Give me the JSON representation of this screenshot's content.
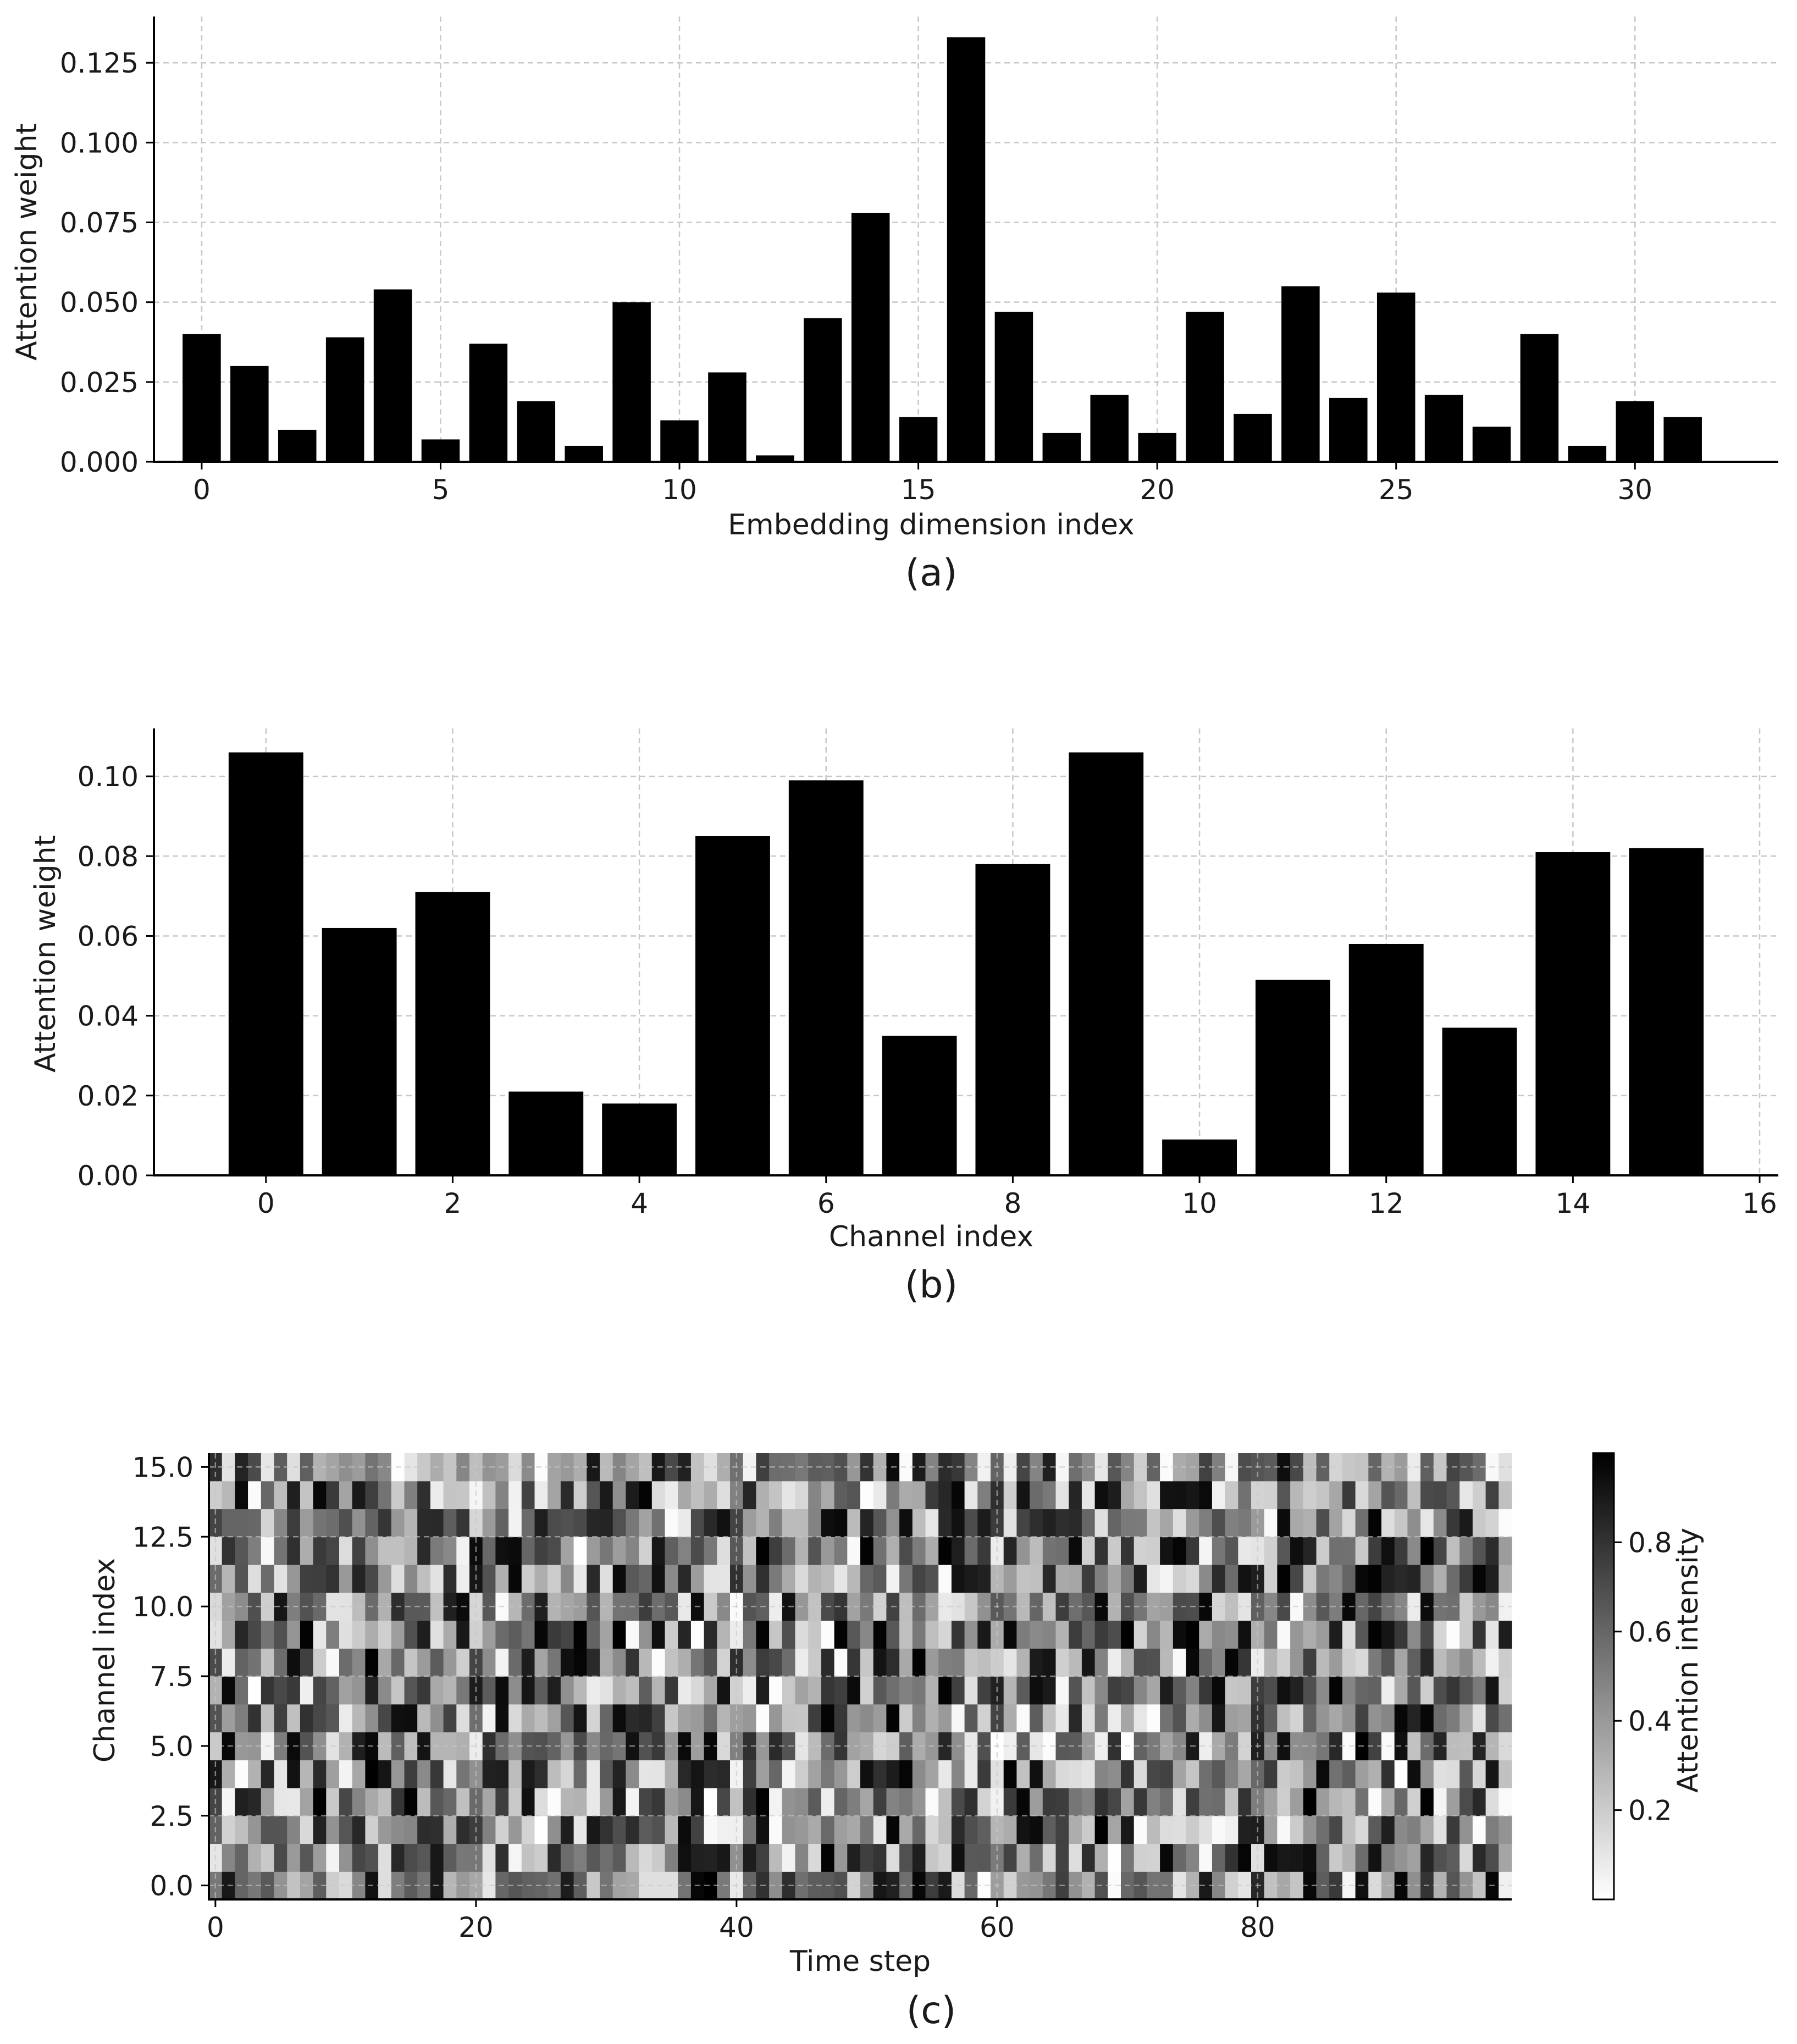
{
  "chart_data": [
    {
      "type": "bar",
      "caption": "(a)",
      "xlabel": "Embedding dimension index",
      "ylabel": "Attention weight",
      "categories": [
        0,
        1,
        2,
        3,
        4,
        5,
        6,
        7,
        8,
        9,
        10,
        11,
        12,
        13,
        14,
        15,
        16,
        17,
        18,
        19,
        20,
        21,
        22,
        23,
        24,
        25,
        26,
        27,
        28,
        29,
        30,
        31
      ],
      "values": [
        0.04,
        0.03,
        0.01,
        0.039,
        0.054,
        0.007,
        0.037,
        0.019,
        0.005,
        0.05,
        0.013,
        0.028,
        0.002,
        0.045,
        0.078,
        0.014,
        0.133,
        0.047,
        0.009,
        0.021,
        0.009,
        0.047,
        0.015,
        0.055,
        0.02,
        0.053,
        0.021,
        0.011,
        0.04,
        0.005,
        0.019,
        0.014
      ],
      "xticks": [
        "0",
        "5",
        "10",
        "15",
        "20",
        "25",
        "30"
      ],
      "yticks": [
        "0.000",
        "0.025",
        "0.050",
        "0.075",
        "0.100",
        "0.125"
      ],
      "xlim": [
        -1.0,
        33.0
      ],
      "ylim": [
        0,
        0.1395
      ],
      "grid": true,
      "color": "#000000"
    },
    {
      "type": "bar",
      "caption": "(b)",
      "xlabel": "Channel index",
      "ylabel": "Attention weight",
      "categories": [
        0,
        1,
        2,
        3,
        4,
        5,
        6,
        7,
        8,
        9,
        10,
        11,
        12,
        13,
        14,
        15
      ],
      "values": [
        0.106,
        0.062,
        0.071,
        0.021,
        0.018,
        0.085,
        0.099,
        0.035,
        0.078,
        0.106,
        0.009,
        0.049,
        0.058,
        0.037,
        0.081,
        0.082
      ],
      "xticks": [
        "0",
        "2",
        "4",
        "6",
        "8",
        "10",
        "12",
        "14",
        "16"
      ],
      "yticks": [
        "0.00",
        "0.02",
        "0.04",
        "0.06",
        "0.08",
        "0.10"
      ],
      "xlim": [
        -1.2,
        16.2
      ],
      "ylim": [
        0,
        0.112
      ],
      "grid": true,
      "color": "#000000"
    },
    {
      "type": "heatmap",
      "caption": "(c)",
      "xlabel": "Time step",
      "ylabel": "Channel index",
      "colorbar_label": "Attention intensity",
      "colorbar_ticks": [
        "0.2",
        "0.4",
        "0.6",
        "0.8"
      ],
      "colormap": "Greys",
      "xticks": [
        "0",
        "20",
        "40",
        "60",
        "80"
      ],
      "yticks": [
        "0.0",
        "2.5",
        "5.0",
        "7.5",
        "10.0",
        "12.5",
        "15.0"
      ],
      "rows": 16,
      "cols": 100,
      "value_range": [
        0.0,
        1.0
      ],
      "seed": 20240611,
      "grid": true
    }
  ]
}
